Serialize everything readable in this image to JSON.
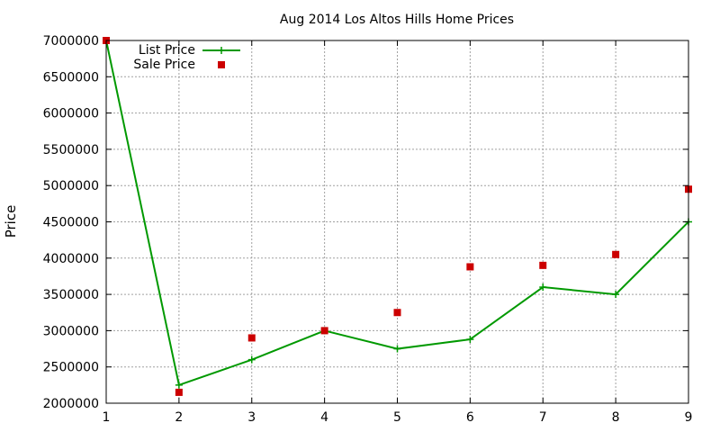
{
  "chart_data": {
    "type": "line",
    "title": "Aug 2014 Los Altos Hills Home Prices",
    "xlabel": "",
    "ylabel": "Price",
    "xlim": [
      1,
      9
    ],
    "ylim": [
      2000000,
      7000000
    ],
    "x_ticks": [
      "1",
      "2",
      "3",
      "4",
      "5",
      "6",
      "7",
      "8",
      "9"
    ],
    "y_ticks": [
      "2000000",
      "2500000",
      "3000000",
      "3500000",
      "4000000",
      "4500000",
      "5000000",
      "5500000",
      "6000000",
      "6500000",
      "7000000"
    ],
    "grid": true,
    "legend_position": "top-left",
    "x": [
      1,
      2,
      3,
      4,
      5,
      6,
      7,
      8,
      9
    ],
    "series": [
      {
        "name": "List Price",
        "style": "lines+points",
        "marker": "plus",
        "color": "#009900",
        "values": [
          7000000,
          2250000,
          2600000,
          3000000,
          2750000,
          2880000,
          3600000,
          3500000,
          4500000
        ]
      },
      {
        "name": "Sale Price",
        "style": "points",
        "marker": "square",
        "color": "#cc0000",
        "values": [
          7000000,
          2150000,
          2900000,
          3000000,
          3250000,
          3880000,
          3900000,
          4050000,
          4950000
        ]
      }
    ]
  }
}
